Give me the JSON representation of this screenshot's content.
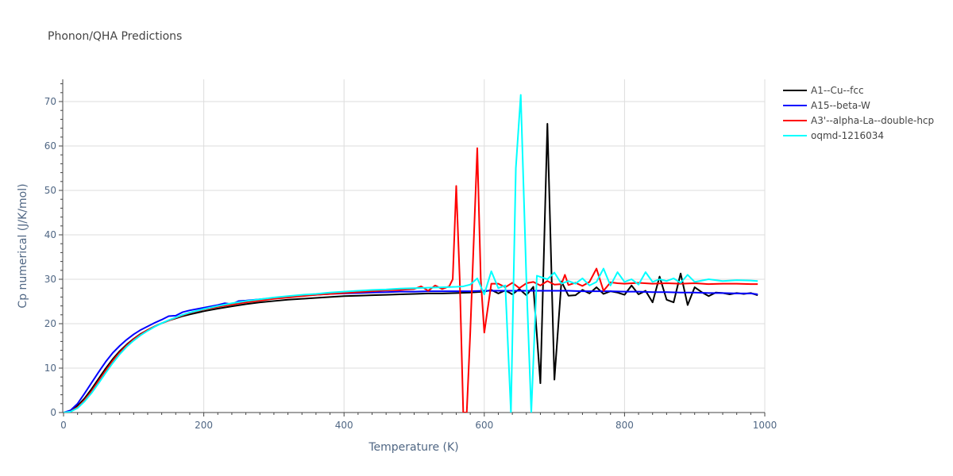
{
  "chart_data": {
    "type": "line",
    "title": "Phonon/QHA Predictions",
    "xlabel": "Temperature (K)",
    "ylabel": "Cp numerical (J/K/mol)",
    "xlim": [
      0,
      1000
    ],
    "ylim": [
      0,
      75
    ],
    "xticks": [
      0,
      200,
      400,
      600,
      800,
      1000
    ],
    "yticks": [
      0,
      10,
      20,
      30,
      40,
      50,
      60,
      70
    ],
    "grid": true,
    "legend_position": "top-right",
    "series": [
      {
        "name": "A1--Cu--fcc",
        "color": "#000000",
        "points": [
          [
            0,
            0
          ],
          [
            10,
            0.3
          ],
          [
            20,
            1.5
          ],
          [
            30,
            3.2
          ],
          [
            40,
            5.3
          ],
          [
            50,
            7.6
          ],
          [
            60,
            9.9
          ],
          [
            70,
            12.0
          ],
          [
            80,
            13.8
          ],
          [
            90,
            15.3
          ],
          [
            100,
            16.6
          ],
          [
            110,
            17.7
          ],
          [
            120,
            18.6
          ],
          [
            130,
            19.4
          ],
          [
            140,
            20.1
          ],
          [
            150,
            20.7
          ],
          [
            160,
            21.2
          ],
          [
            170,
            21.7
          ],
          [
            180,
            22.1
          ],
          [
            200,
            22.8
          ],
          [
            220,
            23.4
          ],
          [
            240,
            23.9
          ],
          [
            260,
            24.4
          ],
          [
            280,
            24.8
          ],
          [
            300,
            25.1
          ],
          [
            320,
            25.4
          ],
          [
            340,
            25.6
          ],
          [
            360,
            25.8
          ],
          [
            380,
            26.0
          ],
          [
            400,
            26.2
          ],
          [
            420,
            26.3
          ],
          [
            440,
            26.4
          ],
          [
            460,
            26.5
          ],
          [
            480,
            26.6
          ],
          [
            500,
            26.7
          ],
          [
            520,
            26.8
          ],
          [
            540,
            26.8
          ],
          [
            560,
            26.9
          ],
          [
            580,
            27.0
          ],
          [
            600,
            27.2
          ],
          [
            610,
            27.6
          ],
          [
            620,
            26.8
          ],
          [
            630,
            27.5
          ],
          [
            640,
            26.6
          ],
          [
            650,
            27.8
          ],
          [
            660,
            26.4
          ],
          [
            670,
            28.3
          ],
          [
            680,
            6.6
          ],
          [
            690,
            65.0
          ],
          [
            700,
            7.4
          ],
          [
            710,
            29.5
          ],
          [
            720,
            26.3
          ],
          [
            730,
            26.4
          ],
          [
            740,
            27.6
          ],
          [
            750,
            26.8
          ],
          [
            760,
            28.2
          ],
          [
            770,
            26.7
          ],
          [
            780,
            27.3
          ],
          [
            790,
            27.0
          ],
          [
            800,
            26.5
          ],
          [
            810,
            28.6
          ],
          [
            820,
            26.6
          ],
          [
            830,
            27.4
          ],
          [
            840,
            24.8
          ],
          [
            850,
            30.6
          ],
          [
            860,
            25.4
          ],
          [
            870,
            24.8
          ],
          [
            880,
            31.3
          ],
          [
            890,
            24.2
          ],
          [
            900,
            28.2
          ],
          [
            910,
            27.1
          ],
          [
            920,
            26.2
          ],
          [
            930,
            27.0
          ],
          [
            940,
            26.9
          ],
          [
            950,
            26.6
          ],
          [
            960,
            26.9
          ],
          [
            970,
            26.7
          ],
          [
            980,
            26.9
          ],
          [
            990,
            26.4
          ]
        ]
      },
      {
        "name": "A15--beta-W",
        "color": "#0000ff",
        "points": [
          [
            0,
            0
          ],
          [
            10,
            0.5
          ],
          [
            20,
            2.0
          ],
          [
            30,
            4.3
          ],
          [
            40,
            6.7
          ],
          [
            50,
            9.1
          ],
          [
            60,
            11.4
          ],
          [
            70,
            13.4
          ],
          [
            80,
            15.0
          ],
          [
            90,
            16.4
          ],
          [
            100,
            17.6
          ],
          [
            110,
            18.6
          ],
          [
            120,
            19.4
          ],
          [
            130,
            20.2
          ],
          [
            140,
            20.9
          ],
          [
            150,
            21.7
          ],
          [
            160,
            21.8
          ],
          [
            170,
            22.6
          ],
          [
            180,
            23.0
          ],
          [
            200,
            23.6
          ],
          [
            220,
            24.2
          ],
          [
            230,
            24.6
          ],
          [
            240,
            24.4
          ],
          [
            250,
            25.1
          ],
          [
            260,
            25.2
          ],
          [
            280,
            25.5
          ],
          [
            300,
            25.8
          ],
          [
            320,
            26.1
          ],
          [
            340,
            26.3
          ],
          [
            360,
            26.5
          ],
          [
            380,
            26.7
          ],
          [
            400,
            26.8
          ],
          [
            420,
            26.9
          ],
          [
            440,
            27.0
          ],
          [
            460,
            27.1
          ],
          [
            480,
            27.2
          ],
          [
            500,
            27.2
          ],
          [
            520,
            27.3
          ],
          [
            540,
            27.3
          ],
          [
            560,
            27.3
          ],
          [
            580,
            27.3
          ],
          [
            600,
            27.4
          ],
          [
            620,
            27.4
          ],
          [
            640,
            27.4
          ],
          [
            660,
            27.4
          ],
          [
            680,
            27.4
          ],
          [
            700,
            27.4
          ],
          [
            720,
            27.4
          ],
          [
            740,
            27.3
          ],
          [
            760,
            27.3
          ],
          [
            780,
            27.3
          ],
          [
            800,
            27.2
          ],
          [
            820,
            27.2
          ],
          [
            840,
            27.1
          ],
          [
            860,
            27.1
          ],
          [
            880,
            27.0
          ],
          [
            900,
            27.0
          ],
          [
            920,
            26.9
          ],
          [
            940,
            26.9
          ],
          [
            960,
            26.8
          ],
          [
            980,
            26.8
          ],
          [
            990,
            26.6
          ]
        ]
      },
      {
        "name": "A3'--alpha-La--double-hcp",
        "color": "#ff0000",
        "points": [
          [
            0,
            0
          ],
          [
            10,
            0.2
          ],
          [
            20,
            1.2
          ],
          [
            30,
            2.8
          ],
          [
            40,
            4.8
          ],
          [
            50,
            7.1
          ],
          [
            60,
            9.4
          ],
          [
            70,
            11.6
          ],
          [
            80,
            13.5
          ],
          [
            90,
            15.1
          ],
          [
            100,
            16.5
          ],
          [
            110,
            17.6
          ],
          [
            120,
            18.6
          ],
          [
            130,
            19.4
          ],
          [
            140,
            20.1
          ],
          [
            150,
            20.7
          ],
          [
            160,
            21.3
          ],
          [
            170,
            21.9
          ],
          [
            180,
            22.4
          ],
          [
            200,
            23.2
          ],
          [
            220,
            23.8
          ],
          [
            240,
            24.3
          ],
          [
            260,
            24.8
          ],
          [
            280,
            25.2
          ],
          [
            300,
            25.6
          ],
          [
            320,
            25.9
          ],
          [
            340,
            26.2
          ],
          [
            360,
            26.5
          ],
          [
            380,
            26.7
          ],
          [
            400,
            26.9
          ],
          [
            420,
            27.1
          ],
          [
            440,
            27.3
          ],
          [
            460,
            27.5
          ],
          [
            480,
            27.6
          ],
          [
            500,
            27.8
          ],
          [
            510,
            28.4
          ],
          [
            520,
            27.4
          ],
          [
            530,
            28.6
          ],
          [
            540,
            27.8
          ],
          [
            550,
            28.4
          ],
          [
            555,
            30.0
          ],
          [
            560,
            51.0
          ],
          [
            565,
            30.0
          ],
          [
            570,
            0.0
          ],
          [
            575,
            0.0
          ],
          [
            580,
            18.0
          ],
          [
            590,
            59.5
          ],
          [
            595,
            30.0
          ],
          [
            600,
            18.0
          ],
          [
            610,
            29.0
          ],
          [
            620,
            29.0
          ],
          [
            630,
            28.2
          ],
          [
            640,
            29.2
          ],
          [
            650,
            28.0
          ],
          [
            660,
            29.1
          ],
          [
            670,
            29.4
          ],
          [
            680,
            28.6
          ],
          [
            690,
            29.6
          ],
          [
            700,
            28.8
          ],
          [
            710,
            28.9
          ],
          [
            715,
            31.0
          ],
          [
            720,
            28.7
          ],
          [
            730,
            29.2
          ],
          [
            740,
            28.5
          ],
          [
            750,
            29.4
          ],
          [
            760,
            32.4
          ],
          [
            770,
            27.4
          ],
          [
            780,
            29.3
          ],
          [
            790,
            29.1
          ],
          [
            800,
            29.0
          ],
          [
            820,
            29.2
          ],
          [
            840,
            29.0
          ],
          [
            860,
            29.1
          ],
          [
            880,
            29.0
          ],
          [
            900,
            29.1
          ],
          [
            920,
            28.9
          ],
          [
            940,
            29.0
          ],
          [
            960,
            29.0
          ],
          [
            980,
            28.9
          ],
          [
            990,
            28.9
          ]
        ]
      },
      {
        "name": "oqmd-1216034",
        "color": "#00ffff",
        "points": [
          [
            0,
            0
          ],
          [
            10,
            0.2
          ],
          [
            20,
            1.0
          ],
          [
            30,
            2.5
          ],
          [
            40,
            4.4
          ],
          [
            50,
            6.6
          ],
          [
            60,
            8.9
          ],
          [
            70,
            11.1
          ],
          [
            80,
            13.1
          ],
          [
            90,
            14.8
          ],
          [
            100,
            16.2
          ],
          [
            110,
            17.4
          ],
          [
            120,
            18.4
          ],
          [
            130,
            19.3
          ],
          [
            140,
            20.1
          ],
          [
            150,
            20.8
          ],
          [
            160,
            21.4
          ],
          [
            170,
            22.0
          ],
          [
            180,
            22.5
          ],
          [
            200,
            23.3
          ],
          [
            220,
            24.0
          ],
          [
            240,
            24.6
          ],
          [
            260,
            25.1
          ],
          [
            280,
            25.5
          ],
          [
            300,
            25.9
          ],
          [
            320,
            26.2
          ],
          [
            340,
            26.5
          ],
          [
            360,
            26.7
          ],
          [
            380,
            27.0
          ],
          [
            400,
            27.2
          ],
          [
            420,
            27.4
          ],
          [
            440,
            27.6
          ],
          [
            460,
            27.7
          ],
          [
            480,
            27.9
          ],
          [
            500,
            28.0
          ],
          [
            520,
            28.1
          ],
          [
            540,
            28.2
          ],
          [
            560,
            28.3
          ],
          [
            570,
            28.4
          ],
          [
            580,
            28.8
          ],
          [
            590,
            30.2
          ],
          [
            600,
            26.6
          ],
          [
            610,
            31.8
          ],
          [
            620,
            28.0
          ],
          [
            630,
            28.6
          ],
          [
            638,
            0.0
          ],
          [
            645,
            55.0
          ],
          [
            652,
            71.5
          ],
          [
            660,
            30.0
          ],
          [
            667,
            0.0
          ],
          [
            675,
            30.8
          ],
          [
            690,
            30.0
          ],
          [
            700,
            31.5
          ],
          [
            710,
            29.0
          ],
          [
            720,
            29.6
          ],
          [
            730,
            29.0
          ],
          [
            740,
            30.2
          ],
          [
            750,
            28.6
          ],
          [
            760,
            29.4
          ],
          [
            770,
            32.4
          ],
          [
            780,
            28.6
          ],
          [
            790,
            31.6
          ],
          [
            800,
            29.4
          ],
          [
            810,
            30.0
          ],
          [
            820,
            28.8
          ],
          [
            830,
            31.6
          ],
          [
            840,
            29.4
          ],
          [
            850,
            30.0
          ],
          [
            860,
            29.6
          ],
          [
            870,
            30.2
          ],
          [
            880,
            29.2
          ],
          [
            890,
            31.0
          ],
          [
            900,
            29.4
          ],
          [
            920,
            30.0
          ],
          [
            940,
            29.6
          ],
          [
            960,
            29.8
          ],
          [
            980,
            29.7
          ],
          [
            990,
            29.6
          ]
        ]
      }
    ]
  }
}
